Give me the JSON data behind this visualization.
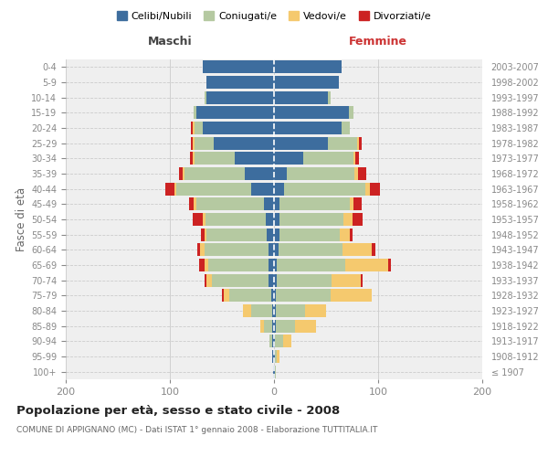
{
  "age_groups": [
    "100+",
    "95-99",
    "90-94",
    "85-89",
    "80-84",
    "75-79",
    "70-74",
    "65-69",
    "60-64",
    "55-59",
    "50-54",
    "45-49",
    "40-44",
    "35-39",
    "30-34",
    "25-29",
    "20-24",
    "15-19",
    "10-14",
    "5-9",
    "0-4"
  ],
  "birth_years": [
    "≤ 1907",
    "1908-1912",
    "1913-1917",
    "1918-1922",
    "1923-1927",
    "1928-1932",
    "1933-1937",
    "1938-1942",
    "1943-1947",
    "1948-1952",
    "1953-1957",
    "1958-1962",
    "1963-1967",
    "1968-1972",
    "1973-1977",
    "1978-1982",
    "1983-1987",
    "1988-1992",
    "1993-1997",
    "1998-2002",
    "2003-2007"
  ],
  "colors": {
    "celibe": "#3d6d9e",
    "coniugato": "#b5c9a1",
    "vedovo": "#f5c96e",
    "divorziato": "#cc2222"
  },
  "maschi": {
    "celibe": [
      1,
      2,
      2,
      2,
      2,
      3,
      5,
      5,
      5,
      7,
      8,
      10,
      22,
      28,
      38,
      58,
      68,
      75,
      65,
      65,
      68
    ],
    "coniugato": [
      0,
      0,
      2,
      8,
      20,
      40,
      55,
      58,
      62,
      58,
      58,
      65,
      72,
      58,
      38,
      18,
      8,
      2,
      2,
      0,
      0
    ],
    "vedovo": [
      0,
      0,
      0,
      3,
      8,
      5,
      5,
      4,
      4,
      2,
      2,
      2,
      2,
      2,
      2,
      2,
      2,
      0,
      0,
      0,
      0
    ],
    "divorziato": [
      0,
      0,
      0,
      0,
      0,
      2,
      2,
      5,
      3,
      3,
      10,
      5,
      8,
      3,
      3,
      2,
      2,
      0,
      0,
      0,
      0
    ]
  },
  "femmine": {
    "nubile": [
      1,
      1,
      1,
      2,
      2,
      2,
      3,
      3,
      4,
      5,
      5,
      5,
      10,
      12,
      28,
      52,
      65,
      72,
      52,
      62,
      65
    ],
    "coniugata": [
      1,
      2,
      8,
      18,
      28,
      52,
      52,
      65,
      62,
      58,
      62,
      68,
      78,
      65,
      48,
      28,
      8,
      4,
      2,
      0,
      0
    ],
    "vedova": [
      0,
      2,
      8,
      20,
      20,
      40,
      28,
      42,
      28,
      10,
      8,
      3,
      4,
      4,
      2,
      2,
      0,
      0,
      0,
      0,
      0
    ],
    "divorziata": [
      0,
      0,
      0,
      0,
      0,
      0,
      2,
      2,
      3,
      2,
      10,
      8,
      10,
      8,
      4,
      2,
      0,
      0,
      0,
      0,
      0
    ]
  },
  "title": "Popolazione per età, sesso e stato civile - 2008",
  "subtitle": "COMUNE DI APPIGNANO (MC) - Dati ISTAT 1° gennaio 2008 - Elaborazione TUTTITALIA.IT",
  "ylabel_left": "Fasce di età",
  "xlabel_left": "Maschi",
  "xlabel_right": "Femmine",
  "xlim": 200,
  "legend_labels": [
    "Celibi/Nubili",
    "Coniugati/e",
    "Vedovi/e",
    "Divorziati/e"
  ],
  "background_color": "#ffffff",
  "plot_bg": "#efefef"
}
